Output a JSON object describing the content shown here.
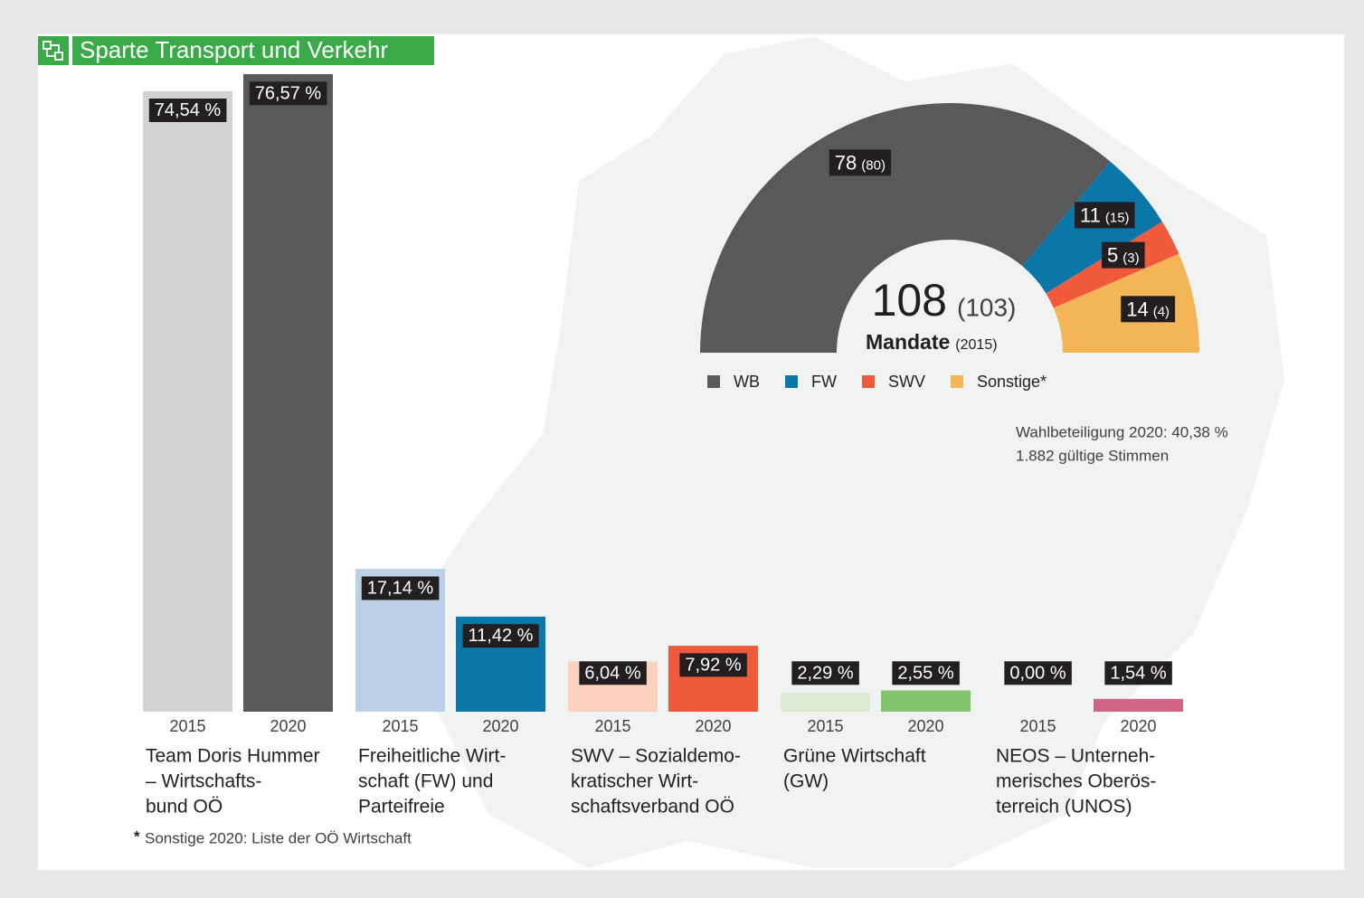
{
  "header": {
    "title": "Sparte Transport und Verkehr"
  },
  "chart_data": [
    {
      "type": "bar",
      "categories": [
        [
          "Team Doris Hummer",
          "– Wirtschafts-",
          "bund OÖ"
        ],
        [
          "Freiheitliche Wirt-",
          "schaft (FW) und",
          "Parteifreie"
        ],
        [
          "SWV – Sozialdemo-",
          "kratischer Wirt-",
          "schaftsverband OÖ"
        ],
        [
          "Grüne Wirtschaft",
          "(GW)"
        ],
        [
          "NEOS – Unterneh-",
          "merisches Oberös-",
          "terreich (UNOS)"
        ]
      ],
      "series": [
        {
          "name": "2015",
          "values": [
            74.54,
            17.14,
            6.04,
            2.29,
            0.0
          ],
          "value_labels": [
            "74,54 %",
            "17,14 %",
            "6,04 %",
            "2,29 %",
            "0,00 %"
          ],
          "colors": [
            "#d1d3d4",
            "#b9d0e6",
            "#fdd3c0",
            "#dcebd2",
            "#f2d6dd"
          ]
        },
        {
          "name": "2020",
          "values": [
            76.57,
            11.42,
            7.92,
            2.55,
            1.54
          ],
          "value_labels": [
            "76,57 %",
            "11,42 %",
            "7,92 %",
            "2,55 %",
            "1,54 %"
          ],
          "colors": [
            "#58595b",
            "#0b76a8",
            "#f05a3c",
            "#82c46a",
            "#d26485"
          ]
        }
      ]
    },
    {
      "type": "donut",
      "categories": [
        "WB",
        "FW",
        "SWV",
        "Sonstige*"
      ],
      "values": [
        78,
        11,
        5,
        14
      ],
      "value_labels_2015": [
        "(80)",
        "(15)",
        "(3)",
        "(4)"
      ],
      "colors": [
        "#58595b",
        "#0b76a8",
        "#f05a3c",
        "#f4b556"
      ],
      "total": 108,
      "total_2015_label": "(103)",
      "caption": "Mandate",
      "caption_sub": "(2015)"
    }
  ],
  "notes": [
    "Wahlbeteiligung 2020: 40,38 %",
    "1.882 gültige Stimmen"
  ],
  "footnote": {
    "marker": "*",
    "text": "Sonstige 2020: Liste der OÖ Wirtschaft"
  }
}
